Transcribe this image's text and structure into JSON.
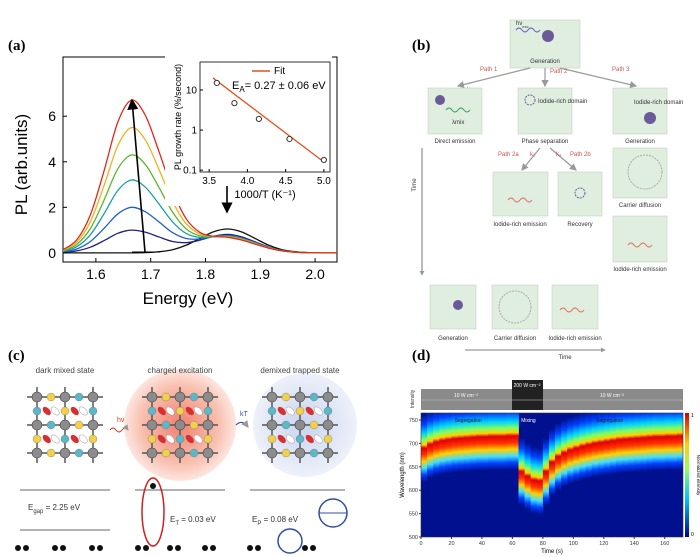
{
  "panel_labels": [
    "(a)",
    "(b)",
    "(c)",
    "(d)"
  ],
  "chart_data": [
    {
      "type": "line",
      "xlabel": "Energy (eV)",
      "ylabel": "PL (arb.units)",
      "x": [
        1.54,
        1.565,
        1.59,
        1.615,
        1.64,
        1.665,
        1.69,
        1.715,
        1.74,
        1.765,
        1.79,
        1.815,
        1.84,
        1.865,
        1.89,
        1.915,
        1.94,
        1.965,
        1.99,
        2.015,
        2.04
      ],
      "series": [
        {
          "color": "#111111",
          "values": [
            0,
            0,
            0,
            0,
            0,
            0,
            0.01,
            0.05,
            0.14,
            0.34,
            0.64,
            0.93,
            1.05,
            0.93,
            0.64,
            0.34,
            0.14,
            0.05,
            0.01,
            0,
            0
          ]
        },
        {
          "color": "#202080",
          "values": [
            0.02,
            0.09,
            0.25,
            0.54,
            0.86,
            1.0,
            0.91,
            0.7,
            0.5,
            0.45,
            0.56,
            0.73,
            0.81,
            0.71,
            0.49,
            0.26,
            0.11,
            0.04,
            0.01,
            0,
            0
          ]
        },
        {
          "color": "#1f5fd0",
          "values": [
            0.04,
            0.17,
            0.5,
            1.08,
            1.71,
            2.0,
            1.81,
            1.36,
            0.89,
            0.63,
            0.61,
            0.71,
            0.76,
            0.66,
            0.46,
            0.24,
            0.1,
            0.03,
            0.01,
            0,
            0
          ]
        },
        {
          "color": "#1aa0a0",
          "values": [
            0.07,
            0.27,
            0.8,
            1.72,
            2.74,
            3.2,
            2.89,
            2.15,
            1.36,
            0.85,
            0.68,
            0.71,
            0.74,
            0.64,
            0.44,
            0.23,
            0.1,
            0.03,
            0.01,
            0,
            0
          ]
        },
        {
          "color": "#5cb82a",
          "values": [
            0.09,
            0.37,
            1.07,
            2.32,
            3.69,
            4.3,
            3.89,
            2.88,
            1.79,
            1.05,
            0.75,
            0.72,
            0.73,
            0.62,
            0.42,
            0.23,
            0.09,
            0.03,
            0.01,
            0,
            0
          ]
        },
        {
          "color": "#f0b020",
          "values": [
            0.12,
            0.47,
            1.37,
            2.96,
            4.71,
            5.5,
            4.97,
            3.67,
            2.26,
            1.27,
            0.83,
            0.73,
            0.71,
            0.6,
            0.41,
            0.22,
            0.09,
            0.03,
            0.01,
            0,
            0
          ]
        },
        {
          "color": "#e02818",
          "values": [
            0.14,
            0.57,
            1.67,
            3.61,
            5.74,
            6.7,
            6.05,
            4.46,
            2.73,
            1.49,
            0.9,
            0.73,
            0.69,
            0.57,
            0.39,
            0.21,
            0.09,
            0.03,
            0.01,
            0,
            0
          ]
        }
      ],
      "xlim": [
        1.54,
        2.04
      ],
      "xticks": [
        1.6,
        1.7,
        1.8,
        1.9,
        {
          "value": 2,
          "label": "2.0"
        }
      ],
      "ylim": [
        -0.4,
        8.6
      ],
      "yticks": [
        0,
        2,
        4,
        6
      ]
    },
    {
      "type": "scatter",
      "xlabel": "1000/T (K⁻¹)",
      "ylabel": "PL growth rate (%/second)",
      "x": [
        3.6,
        3.83,
        4.15,
        4.55,
        5.0
      ],
      "values": [
        15,
        4.7,
        1.9,
        0.6,
        0.18
      ],
      "color": "#333333",
      "fit": {
        "name": "Fit",
        "color": "#e0521c",
        "x": [
          3.55,
          5.0
        ],
        "values": [
          20,
          0.16
        ]
      },
      "annotation": {
        "symbol": "E",
        "sub": "A",
        "text": "= 0.27 ± 0.06  eV"
      },
      "xlim": [
        3.38,
        5.08
      ],
      "xticks": [
        3.5,
        {
          "value": 4,
          "label": "4.0"
        },
        4.5,
        {
          "value": 5,
          "label": "5.0"
        }
      ],
      "ylim": [
        0.09,
        50
      ],
      "yticks": [
        0.1,
        1,
        10
      ],
      "log_y": true
    },
    {
      "type": "heatmap",
      "xlabel": "Time (s)",
      "ylabel": "Wavelength (nm)",
      "x": [
        0,
        4,
        8,
        12,
        16,
        20,
        24,
        28,
        32,
        36,
        40,
        44,
        48,
        52,
        56,
        60,
        64,
        68,
        72,
        76,
        80,
        84,
        88,
        92,
        96,
        100,
        104,
        108,
        112,
        116,
        120,
        124,
        128,
        132,
        136,
        140,
        144,
        148,
        152,
        156,
        160,
        164,
        168
      ],
      "values": [
        690,
        698,
        703,
        706,
        708,
        710,
        711,
        712,
        713,
        714,
        714,
        715,
        715,
        715,
        716,
        716,
        640,
        630,
        622,
        620,
        640,
        660,
        672,
        680,
        686,
        690,
        694,
        697,
        700,
        702,
        704,
        706,
        708,
        709,
        710,
        711,
        712,
        713,
        714,
        714,
        715,
        715,
        716
      ],
      "xlim": [
        0,
        172
      ],
      "xticks": [
        0,
        20,
        40,
        60,
        80,
        100,
        120,
        140,
        160
      ],
      "ylim": [
        500,
        765
      ],
      "yticks": [
        500,
        550,
        600,
        650,
        700,
        750
      ],
      "colorbar_label": "Normalized intensity",
      "colorbar_ticks": [
        0,
        1
      ],
      "intensity_label": "Intensity",
      "powers": [
        "10 W cm⁻²",
        "200 W cm⁻²",
        "10 W cm⁻²"
      ],
      "phases": [
        "Segregation",
        "Mixing",
        "Segregation"
      ]
    }
  ],
  "diagram_b": {
    "photon": "hν",
    "photon_sub": "exc",
    "top": "Generation",
    "paths": [
      "Path 1",
      "Path 2",
      "Path 3"
    ],
    "rate_1": "k₁",
    "row2": [
      {
        "label": "Direct emission",
        "emission": "λmix"
      },
      {
        "label": "Phase separation",
        "inner": "Iodide-rich domain"
      },
      {
        "label": "Generation",
        "inner": "Iodide-rich domain"
      }
    ],
    "subpaths": [
      "Path 2a",
      "Path 2b"
    ],
    "rates": [
      "k₂",
      "k₃"
    ],
    "row3": [
      "Iodide-rich emission",
      "Recovery"
    ],
    "right_column": [
      "Carrier diffusion",
      "Iodide-rich emission"
    ],
    "time_vertical": "Time",
    "bottom_row": [
      "Generation",
      "Carrier diffusion",
      "Iodide-rich emission"
    ],
    "time_horizontal": "Time"
  },
  "diagram_c": {
    "states": [
      "dark mixed state",
      "charged excitation",
      "demixed trapped state"
    ],
    "transitions": [
      "hν",
      "kT"
    ],
    "energies": [
      {
        "symbol": "E",
        "sub": "gap",
        "text": " = 2.25 eV"
      },
      {
        "symbol": "E",
        "sub": "T",
        "text": " = 0.03 eV"
      },
      {
        "symbol": "E",
        "sub": "P",
        "text": " = 0.08 eV"
      }
    ]
  }
}
